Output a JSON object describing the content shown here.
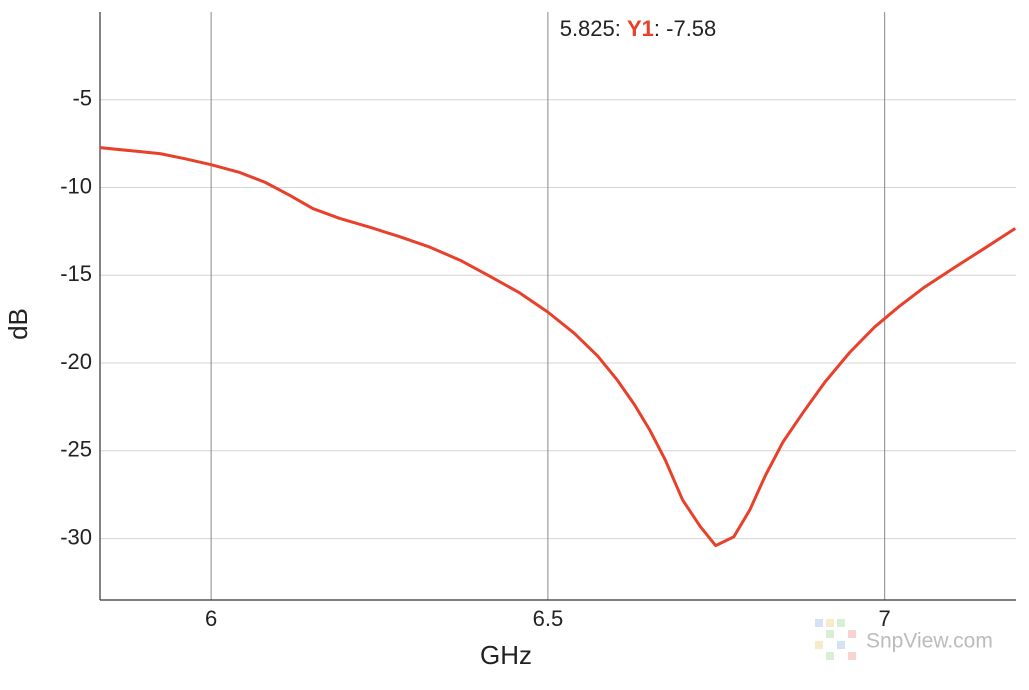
{
  "chart_data": {
    "type": "line",
    "x_label": "GHz",
    "y_label": "dB",
    "x": [
      5.835,
      5.88,
      5.924,
      5.96,
      6.0,
      6.043,
      6.08,
      6.117,
      6.151,
      6.191,
      6.236,
      6.28,
      6.325,
      6.37,
      6.414,
      6.458,
      6.5,
      6.539,
      6.574,
      6.603,
      6.629,
      6.651,
      6.674,
      6.7,
      6.726,
      6.749,
      6.776,
      6.8,
      6.823,
      6.849,
      6.881,
      6.911,
      6.948,
      6.985,
      7.022,
      7.059,
      7.104,
      7.148,
      7.194
    ],
    "series": [
      {
        "name": "Y1",
        "color": "#e8402a",
        "values": [
          -7.73,
          -7.9,
          -8.07,
          -8.35,
          -8.7,
          -9.15,
          -9.7,
          -10.45,
          -11.2,
          -11.76,
          -12.27,
          -12.8,
          -13.4,
          -14.15,
          -15.06,
          -16.0,
          -17.1,
          -18.3,
          -19.6,
          -20.97,
          -22.4,
          -23.8,
          -25.5,
          -27.8,
          -29.3,
          -30.4,
          -29.9,
          -28.35,
          -26.4,
          -24.5,
          -22.7,
          -21.1,
          -19.4,
          -17.95,
          -16.76,
          -15.68,
          -14.55,
          -13.47,
          -12.33
        ]
      }
    ],
    "xlim": [
      5.835,
      7.195
    ],
    "ylim": [
      -33.5,
      0
    ],
    "xticks": [
      6,
      6.5,
      7
    ],
    "yticks": [
      -30,
      -25,
      -20,
      -15,
      -10,
      -5
    ],
    "grid": true,
    "cursor": {
      "before": "5.825: ",
      "after": ": -7.58"
    },
    "watermark": "SnpView.com"
  }
}
